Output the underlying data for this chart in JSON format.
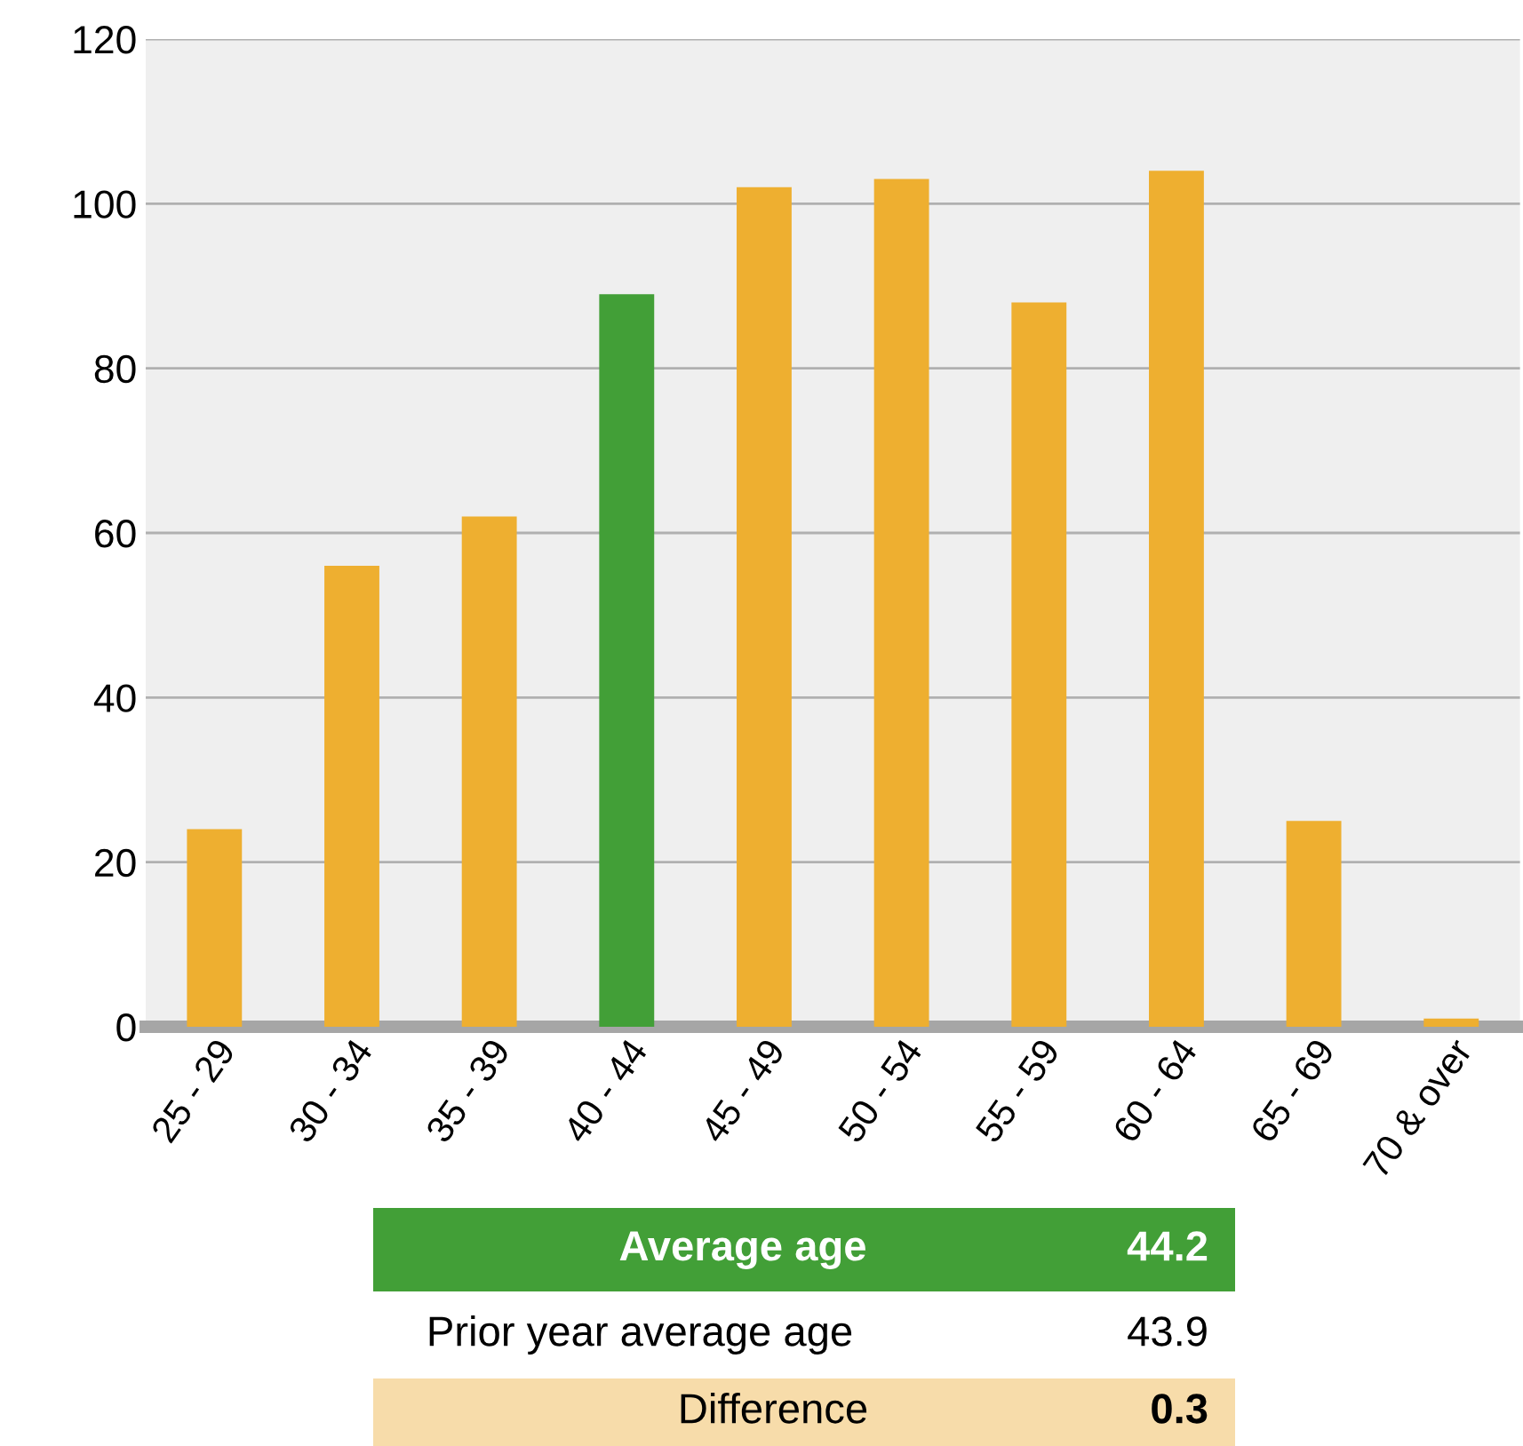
{
  "chart_data": {
    "type": "bar",
    "categories": [
      "25 - 29",
      "30 - 34",
      "35 - 39",
      "40 - 44",
      "45 - 49",
      "50 - 54",
      "55 - 59",
      "60 - 64",
      "65 - 69",
      "70 & over"
    ],
    "values": [
      24,
      56,
      62,
      89,
      102,
      103,
      88,
      104,
      25,
      1
    ],
    "colors": [
      "#eeaf30",
      "#eeaf30",
      "#eeaf30",
      "#429f37",
      "#eeaf30",
      "#eeaf30",
      "#eeaf30",
      "#eeaf30",
      "#eeaf30",
      "#eeaf30"
    ],
    "ylim": [
      0,
      120
    ],
    "yticks": [
      0,
      20,
      40,
      60,
      80,
      100,
      120
    ],
    "grid": "y",
    "annotations": [
      "Average age",
      "44.2",
      "Prior year average age",
      "43.9",
      "Difference",
      "0.3"
    ]
  }
}
